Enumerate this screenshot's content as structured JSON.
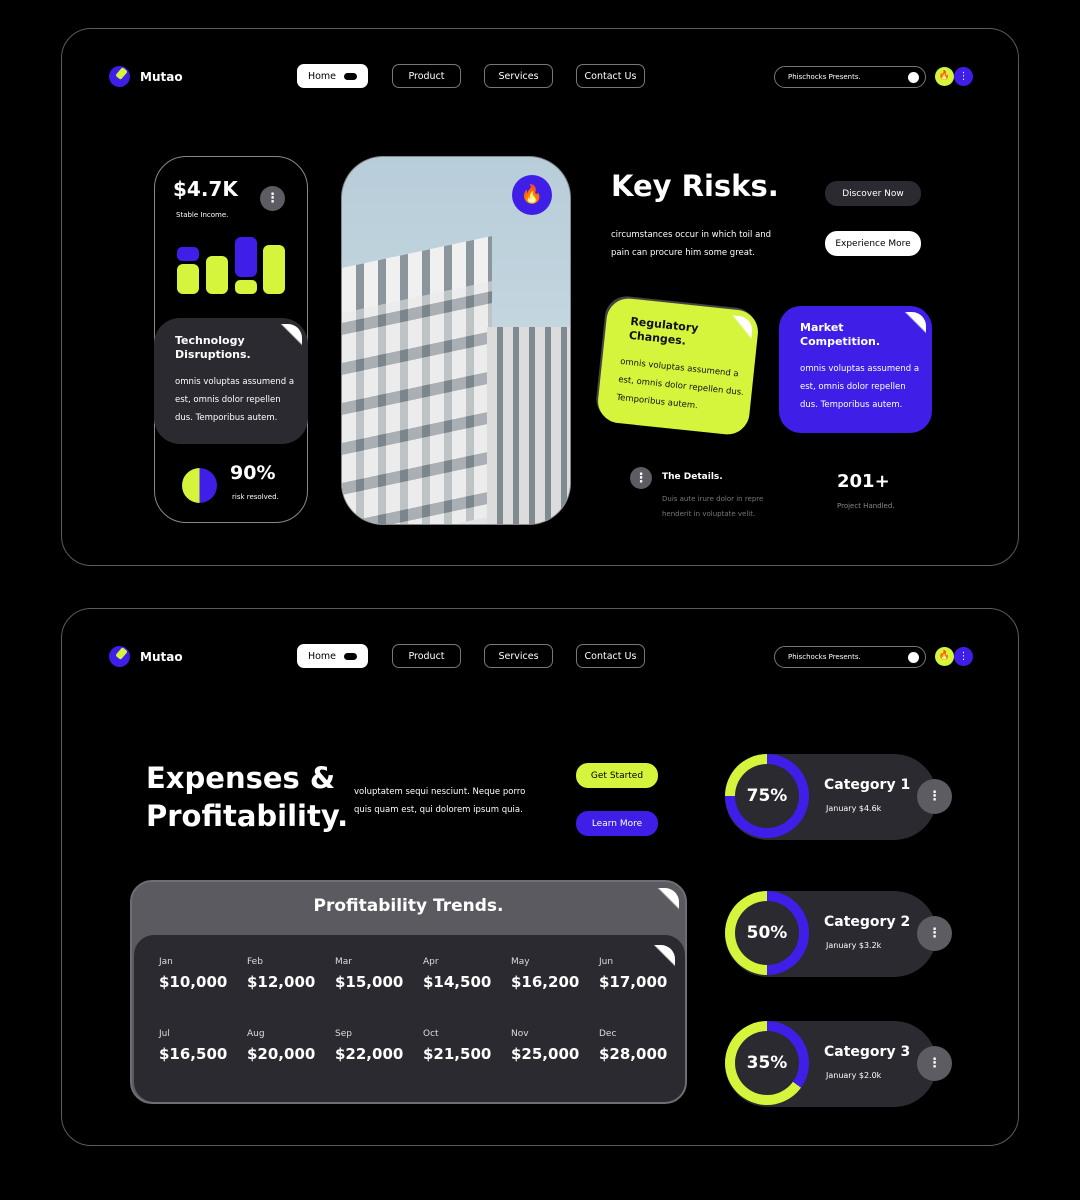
{
  "nav": {
    "brand": "Mutao",
    "items": [
      "Home",
      "Product",
      "Services",
      "Contact Us"
    ],
    "search_placeholder": "Phischocks Presents."
  },
  "colors": {
    "accent_lime": "#d4f53c",
    "accent_purple": "#3f1ee8",
    "bg": "#000000",
    "card_dark": "#2a2a30"
  },
  "hero1": {
    "income_value": "$4.7K",
    "income_label": "Stable Income.",
    "tech_title": "Technology Disruptions.",
    "tech_text": "omnis voluptas assumend a est, omnis dolor repellen dus. Temporibus autem.",
    "risk_value": "90%",
    "risk_label": "risk resolved.",
    "risk_fraction": 0.9,
    "title": "Key Risks.",
    "desc": "circumstances occur in which toil and pain can procure him some great.",
    "discover_label": "Discover Now",
    "experience_label": "Experience More",
    "reg_title": "Regulatory Changes.",
    "reg_text": "omnis voluptas assumend a est, omnis dolor repellen dus. Temporibus autem.",
    "market_title": "Market Competition.",
    "market_text": "omnis voluptas assumend a est, omnis dolor repellen dus. Temporibus autem.",
    "details_title": "The Details.",
    "details_text": "Duis aute irure dolor in repre henderit in voluptate velit.",
    "projects_value": "201+",
    "projects_label": "Project Handled."
  },
  "hero2": {
    "title": "Expenses & Profitability.",
    "desc": "voluptatem sequi nesciunt. Neque porro quis quam est, qui dolorem ipsum quia.",
    "get_started_label": "Get Started",
    "learn_more_label": "Learn More",
    "trends_title": "Profitability Trends.",
    "months": [
      {
        "m": "Jan",
        "v": "$10,000"
      },
      {
        "m": "Feb",
        "v": "$12,000"
      },
      {
        "m": "Mar",
        "v": "$15,000"
      },
      {
        "m": "Apr",
        "v": "$14,500"
      },
      {
        "m": "May",
        "v": "$16,200"
      },
      {
        "m": "Jun",
        "v": "$17,000"
      },
      {
        "m": "Jul",
        "v": "$16,500"
      },
      {
        "m": "Aug",
        "v": "$20,000"
      },
      {
        "m": "Sep",
        "v": "$22,000"
      },
      {
        "m": "Oct",
        "v": "$21,500"
      },
      {
        "m": "Nov",
        "v": "$25,000"
      },
      {
        "m": "Dec",
        "v": "$28,000"
      }
    ],
    "categories": [
      {
        "pct": "75%",
        "value": 75,
        "name": "Category 1",
        "sub": "January $4.6k"
      },
      {
        "pct": "50%",
        "value": 50,
        "name": "Category 2",
        "sub": "January $3.2k"
      },
      {
        "pct": "35%",
        "value": 35,
        "name": "Category 3",
        "sub": "January $2.0k"
      }
    ]
  }
}
